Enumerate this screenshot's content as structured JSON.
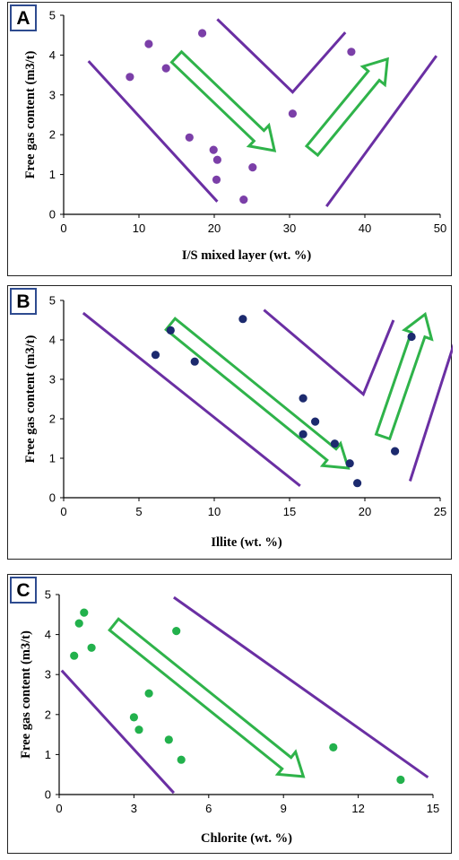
{
  "chart_data": [
    {
      "panel": "A",
      "type": "scatter",
      "xlabel": "I/S mixed layer (wt. %)",
      "ylabel": "Free gas content (m3/t)",
      "xlim": [
        0,
        50
      ],
      "ylim": [
        0,
        5
      ],
      "xticks": [
        "0",
        "10",
        "20",
        "30",
        "40",
        "50"
      ],
      "yticks": [
        "0",
        "1",
        "2",
        "3",
        "4",
        "5"
      ],
      "point_color": "#7b3fa8",
      "points": [
        {
          "x": 8.8,
          "y": 3.45
        },
        {
          "x": 11.3,
          "y": 4.28
        },
        {
          "x": 13.6,
          "y": 3.67
        },
        {
          "x": 18.4,
          "y": 4.55
        },
        {
          "x": 16.7,
          "y": 1.93
        },
        {
          "x": 19.9,
          "y": 1.62
        },
        {
          "x": 20.4,
          "y": 1.37
        },
        {
          "x": 20.3,
          "y": 0.87
        },
        {
          "x": 23.9,
          "y": 0.37
        },
        {
          "x": 25.1,
          "y": 1.18
        },
        {
          "x": 30.4,
          "y": 2.53
        },
        {
          "x": 38.2,
          "y": 4.08
        }
      ],
      "trend_lines": [
        [
          [
            3.3,
            3.85
          ],
          [
            20.4,
            0.32
          ]
        ],
        [
          [
            20.4,
            4.9
          ],
          [
            30.4,
            3.07
          ],
          [
            37.4,
            4.57
          ]
        ],
        [
          [
            34.9,
            0.2
          ],
          [
            49.5,
            3.98
          ]
        ]
      ],
      "arrows": [
        {
          "from": [
            15.0,
            3.95
          ],
          "to": [
            28.0,
            1.6
          ]
        },
        {
          "from": [
            33.0,
            1.6
          ],
          "to": [
            43.0,
            3.9
          ]
        }
      ]
    },
    {
      "panel": "B",
      "type": "scatter",
      "xlabel": "Illite (wt. %)",
      "ylabel": "Free gas content (m3/t)",
      "xlim": [
        0,
        25
      ],
      "ylim": [
        0,
        5
      ],
      "xticks": [
        "0",
        "5",
        "10",
        "15",
        "20",
        "25"
      ],
      "yticks": [
        "0",
        "1",
        "2",
        "3",
        "4",
        "5"
      ],
      "point_color": "#1c2a6e",
      "points": [
        {
          "x": 6.1,
          "y": 3.62
        },
        {
          "x": 7.1,
          "y": 4.24
        },
        {
          "x": 8.7,
          "y": 3.45
        },
        {
          "x": 11.9,
          "y": 4.53
        },
        {
          "x": 15.9,
          "y": 2.52
        },
        {
          "x": 15.9,
          "y": 1.61
        },
        {
          "x": 16.7,
          "y": 1.93
        },
        {
          "x": 18.0,
          "y": 1.37
        },
        {
          "x": 19.0,
          "y": 0.87
        },
        {
          "x": 19.5,
          "y": 0.37
        },
        {
          "x": 22.0,
          "y": 1.18
        },
        {
          "x": 23.1,
          "y": 4.08
        }
      ],
      "trend_lines": [
        [
          [
            1.3,
            4.68
          ],
          [
            15.7,
            0.3
          ]
        ],
        [
          [
            13.3,
            4.76
          ],
          [
            19.9,
            2.62
          ],
          [
            21.9,
            4.5
          ]
        ],
        [
          [
            23.0,
            0.42
          ],
          [
            26.0,
            4.0
          ]
        ]
      ],
      "arrows": [
        {
          "from": [
            7.1,
            4.4
          ],
          "to": [
            18.9,
            0.75
          ]
        },
        {
          "from": [
            21.2,
            1.55
          ],
          "to": [
            24.0,
            4.65
          ]
        }
      ]
    },
    {
      "panel": "C",
      "type": "scatter",
      "xlabel": "Chlorite (wt. %)",
      "ylabel": "Free gas content (m3/t)",
      "xlim": [
        0,
        15
      ],
      "ylim": [
        0,
        5
      ],
      "xticks": [
        "0",
        "3",
        "6",
        "9",
        "12",
        "15"
      ],
      "yticks": [
        "0",
        "1",
        "2",
        "3",
        "4",
        "5"
      ],
      "point_color": "#22b14c",
      "points": [
        {
          "x": 0.6,
          "y": 3.47
        },
        {
          "x": 0.8,
          "y": 4.28
        },
        {
          "x": 1.0,
          "y": 4.55
        },
        {
          "x": 1.3,
          "y": 3.67
        },
        {
          "x": 3.6,
          "y": 2.53
        },
        {
          "x": 3.0,
          "y": 1.93
        },
        {
          "x": 3.2,
          "y": 1.62
        },
        {
          "x": 4.4,
          "y": 1.37
        },
        {
          "x": 4.9,
          "y": 0.87
        },
        {
          "x": 4.7,
          "y": 4.09
        },
        {
          "x": 11.0,
          "y": 1.18
        },
        {
          "x": 13.7,
          "y": 0.37
        }
      ],
      "trend_lines": [
        [
          [
            0.1,
            3.1
          ],
          [
            4.6,
            0.04
          ]
        ],
        [
          [
            4.6,
            4.93
          ],
          [
            14.8,
            0.43
          ]
        ]
      ],
      "arrows": [
        {
          "from": [
            2.2,
            4.25
          ],
          "to": [
            9.8,
            0.45
          ]
        }
      ]
    }
  ],
  "panel_labels": [
    "A",
    "B",
    "C"
  ],
  "colors": {
    "trend_line": "#6a2fa3",
    "arrow": "#2fb34a"
  }
}
